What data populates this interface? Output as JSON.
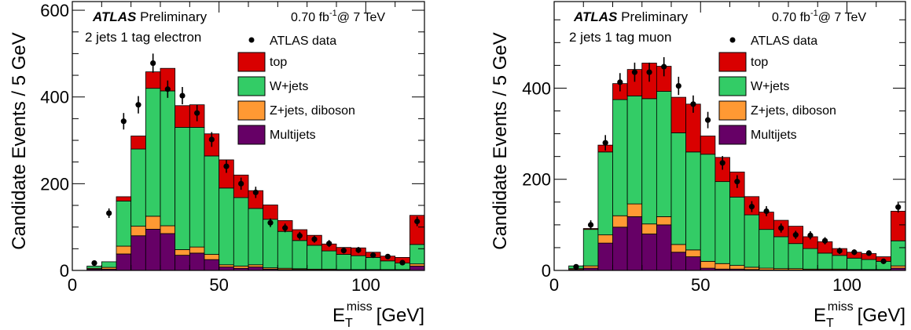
{
  "colors": {
    "top": "#d90000",
    "wjets": "#33cc66",
    "zjets": "#ff9933",
    "multijets": "#660066",
    "data": "#000000"
  },
  "chart_data": [
    {
      "type": "stacked-histogram",
      "experiment": "ATLAS",
      "status": "Preliminary",
      "lumi_text": "0.70 fb",
      "lumi_sup": "-1",
      "energy_text": "@ 7 TeV",
      "channel": "2 jets 1 tag electron",
      "ylabel": "Candidate Events / 5 GeV",
      "xlabel_main": "E",
      "xlabel_sub": "T",
      "xlabel_sup": "miss",
      "xlabel_unit": "[GeV]",
      "xlim": [
        0,
        120
      ],
      "ylim": [
        0,
        620
      ],
      "xticks": [
        0,
        50,
        100
      ],
      "yticks": [
        0,
        200,
        400,
        600
      ],
      "bin_width": 5,
      "bin_low_edges": [
        5,
        10,
        15,
        20,
        25,
        30,
        35,
        40,
        45,
        50,
        55,
        60,
        65,
        70,
        75,
        80,
        85,
        90,
        95,
        100,
        105,
        110,
        115
      ],
      "stack": [
        {
          "name": "Multijets",
          "color_key": "multijets",
          "values": [
            3,
            3,
            38,
            80,
            95,
            85,
            35,
            40,
            25,
            8,
            5,
            8,
            3,
            2,
            2,
            1,
            1,
            1,
            1,
            1,
            1,
            1,
            10
          ]
        },
        {
          "name": "Z+jets, diboson",
          "color_key": "zjets",
          "values": [
            2,
            4,
            18,
            22,
            30,
            18,
            13,
            14,
            12,
            5,
            5,
            5,
            3,
            3,
            2,
            2,
            2,
            1,
            1,
            1,
            1,
            1,
            5
          ]
        },
        {
          "name": "W+jets",
          "color_key": "wjets",
          "values": [
            5,
            13,
            104,
            178,
            295,
            311,
            282,
            276,
            227,
            177,
            158,
            130,
            112,
            85,
            65,
            55,
            42,
            35,
            32,
            28,
            20,
            15,
            45
          ]
        },
        {
          "name": "top",
          "color_key": "top",
          "values": [
            0,
            0,
            10,
            30,
            38,
            52,
            50,
            52,
            51,
            65,
            52,
            41,
            33,
            25,
            25,
            23,
            16,
            16,
            18,
            12,
            11,
            13,
            67
          ]
        }
      ],
      "data_series": {
        "name": "ATLAS data",
        "x": [
          7.5,
          12.5,
          17.5,
          22.5,
          27.5,
          32.5,
          37.5,
          42.5,
          47.5,
          52.5,
          57.5,
          62.5,
          67.5,
          72.5,
          77.5,
          82.5,
          87.5,
          92.5,
          97.5,
          102.5,
          107.5,
          112.5,
          117.5
        ],
        "y": [
          17,
          132,
          344,
          382,
          478,
          418,
          403,
          363,
          302,
          240,
          200,
          180,
          110,
          98,
          80,
          72,
          62,
          46,
          47,
          35,
          32,
          18,
          113
        ],
        "err": [
          4,
          11,
          19,
          20,
          22,
          20,
          20,
          19,
          17,
          15,
          14,
          13,
          10,
          10,
          9,
          8,
          8,
          7,
          7,
          6,
          6,
          4,
          11
        ]
      },
      "legend": [
        "ATLAS data",
        "top",
        "W+jets",
        "Z+jets, diboson",
        "Multijets"
      ]
    },
    {
      "type": "stacked-histogram",
      "experiment": "ATLAS",
      "status": "Preliminary",
      "lumi_text": "0.70 fb",
      "lumi_sup": "-1",
      "energy_text": "@ 7 TeV",
      "channel": "2 jets 1 tag muon",
      "ylabel": "Candidate Events / 5 GeV",
      "xlabel_main": "E",
      "xlabel_sub": "T",
      "xlabel_sup": "miss",
      "xlabel_unit": "[GeV]",
      "xlim": [
        0,
        120
      ],
      "ylim": [
        0,
        590
      ],
      "xticks": [
        0,
        50,
        100
      ],
      "yticks": [
        0,
        200,
        400
      ],
      "bin_width": 5,
      "bin_low_edges": [
        5,
        10,
        15,
        20,
        25,
        30,
        35,
        40,
        45,
        50,
        55,
        60,
        65,
        70,
        75,
        80,
        85,
        90,
        95,
        100,
        105,
        110,
        115
      ],
      "stack": [
        {
          "name": "Multijets",
          "color_key": "multijets",
          "values": [
            2,
            5,
            60,
            95,
            118,
            80,
            100,
            40,
            30,
            5,
            3,
            3,
            2,
            1,
            1,
            1,
            1,
            1,
            1,
            1,
            1,
            1,
            5
          ]
        },
        {
          "name": "Z+jets, diboson",
          "color_key": "zjets",
          "values": [
            2,
            5,
            18,
            25,
            28,
            22,
            18,
            17,
            15,
            15,
            12,
            8,
            5,
            4,
            3,
            3,
            2,
            2,
            2,
            1,
            1,
            1,
            5
          ]
        },
        {
          "name": "W+jets",
          "color_key": "wjets",
          "values": [
            6,
            80,
            182,
            255,
            237,
            275,
            275,
            245,
            215,
            235,
            180,
            150,
            115,
            85,
            70,
            55,
            45,
            35,
            30,
            25,
            22,
            18,
            55
          ]
        },
        {
          "name": "top",
          "color_key": "top",
          "values": [
            0,
            2,
            15,
            35,
            58,
            78,
            55,
            78,
            105,
            40,
            53,
            55,
            40,
            38,
            36,
            38,
            26,
            25,
            15,
            13,
            13,
            10,
            65
          ]
        }
      ],
      "data_series": {
        "name": "ATLAS data",
        "x": [
          7.5,
          12.5,
          17.5,
          22.5,
          27.5,
          32.5,
          37.5,
          42.5,
          47.5,
          52.5,
          57.5,
          62.5,
          67.5,
          72.5,
          77.5,
          82.5,
          87.5,
          92.5,
          97.5,
          102.5,
          107.5,
          112.5,
          117.5
        ],
        "y": [
          8,
          100,
          280,
          413,
          435,
          435,
          447,
          405,
          365,
          330,
          236,
          195,
          140,
          130,
          93,
          78,
          77,
          65,
          43,
          40,
          38,
          20,
          139
        ],
        "err": [
          3,
          10,
          17,
          20,
          21,
          21,
          21,
          20,
          19,
          18,
          15,
          14,
          12,
          11,
          10,
          9,
          9,
          8,
          7,
          6,
          6,
          5,
          12
        ]
      },
      "legend": [
        "ATLAS data",
        "top",
        "W+jets",
        "Z+jets, diboson",
        "Multijets"
      ]
    }
  ]
}
